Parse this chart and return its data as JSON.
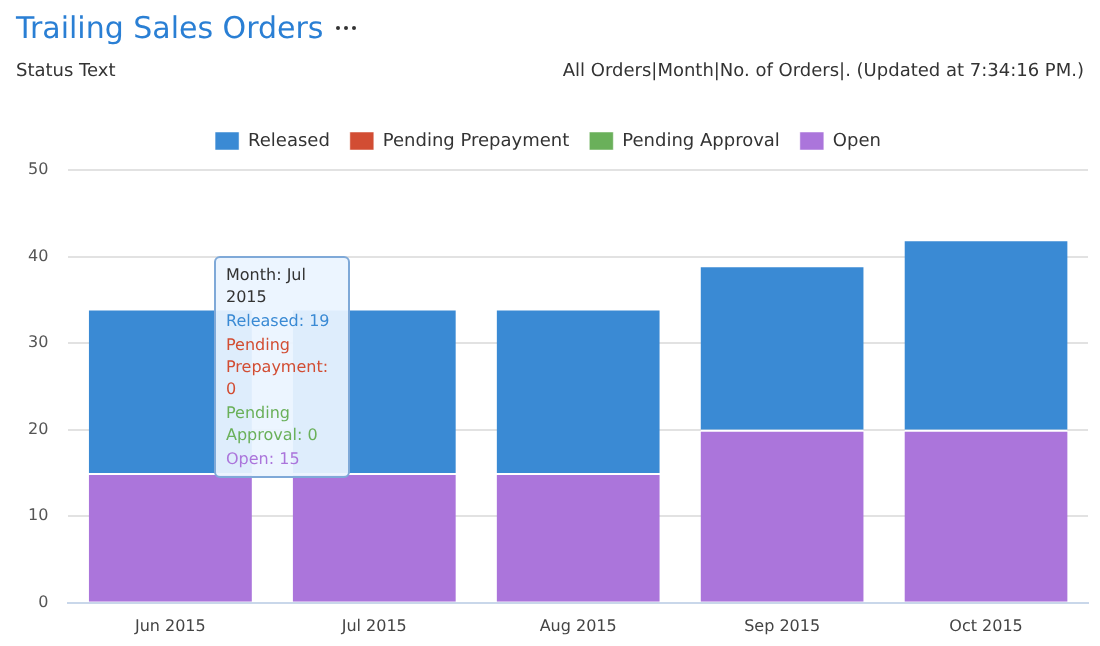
{
  "chart_data": {
    "type": "bar",
    "title": "Trailing Sales Orders",
    "subtitle": "Status Text",
    "annotations": [
      "All Orders|Month|No. of Orders|. (Updated at 7:34:16 PM.)",
      "Month: Jul 2015",
      "Released: 19",
      "Pending Prepayment: 0",
      "Pending Approval: 0",
      "Open: 15"
    ],
    "categories": [
      "Jun 2015",
      "Jul 2015",
      "Aug 2015",
      "Sep 2015",
      "Oct 2015"
    ],
    "stacked": true,
    "series": [
      {
        "name": "Open",
        "color": "#ab75db",
        "values": [
          15,
          15,
          15,
          20,
          20
        ]
      },
      {
        "name": "Pending Approval",
        "color": "#6ab05a",
        "values": [
          0,
          0,
          0,
          0,
          0
        ]
      },
      {
        "name": "Pending Prepayment",
        "color": "#d24d33",
        "values": [
          0,
          0,
          0,
          0,
          0
        ]
      },
      {
        "name": "Released",
        "color": "#3a8ad4",
        "values": [
          19,
          19,
          19,
          19,
          22
        ]
      }
    ],
    "ylim": [
      0,
      50
    ],
    "yticks": [
      0,
      10,
      20,
      30,
      40,
      50
    ],
    "grid": "y",
    "legend": "top"
  }
}
